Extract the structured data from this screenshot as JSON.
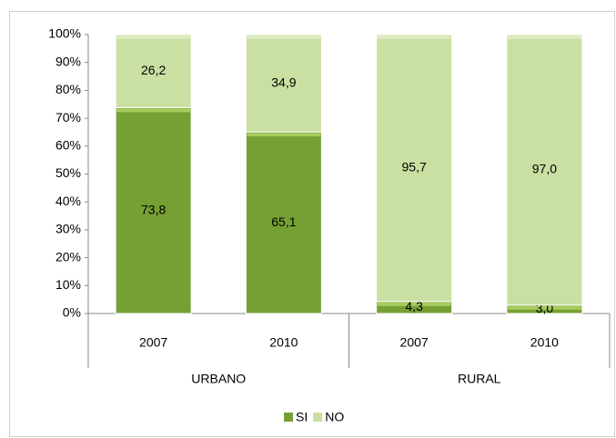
{
  "chart_data": {
    "type": "stacked_bar",
    "groups": [
      {
        "name": "URBANO",
        "categories": [
          "2007",
          "2010"
        ]
      },
      {
        "name": "RURAL",
        "categories": [
          "2007",
          "2010"
        ]
      }
    ],
    "series": [
      {
        "name": "SI",
        "color": "#76a034",
        "values": [
          73.8,
          65.1,
          4.3,
          3.0
        ],
        "value_labels": [
          "73,8",
          "65,1",
          "4,3",
          "3,0"
        ]
      },
      {
        "name": "NO",
        "color": "#cadfa2",
        "values": [
          26.2,
          34.9,
          95.7,
          97.0
        ],
        "value_labels": [
          "26,2",
          "34,9",
          "95,7",
          "97,0"
        ]
      }
    ],
    "ylim": [
      0,
      100
    ],
    "yticks": [
      {
        "value": 0,
        "label": "0%"
      },
      {
        "value": 10,
        "label": "10%"
      },
      {
        "value": 20,
        "label": "20%"
      },
      {
        "value": 30,
        "label": "30%"
      },
      {
        "value": 40,
        "label": "40%"
      },
      {
        "value": 50,
        "label": "50%"
      },
      {
        "value": 60,
        "label": "60%"
      },
      {
        "value": 70,
        "label": "70%"
      },
      {
        "value": 80,
        "label": "80%"
      },
      {
        "value": 90,
        "label": "90%"
      },
      {
        "value": 100,
        "label": "100%"
      }
    ],
    "legend": "bottom"
  }
}
